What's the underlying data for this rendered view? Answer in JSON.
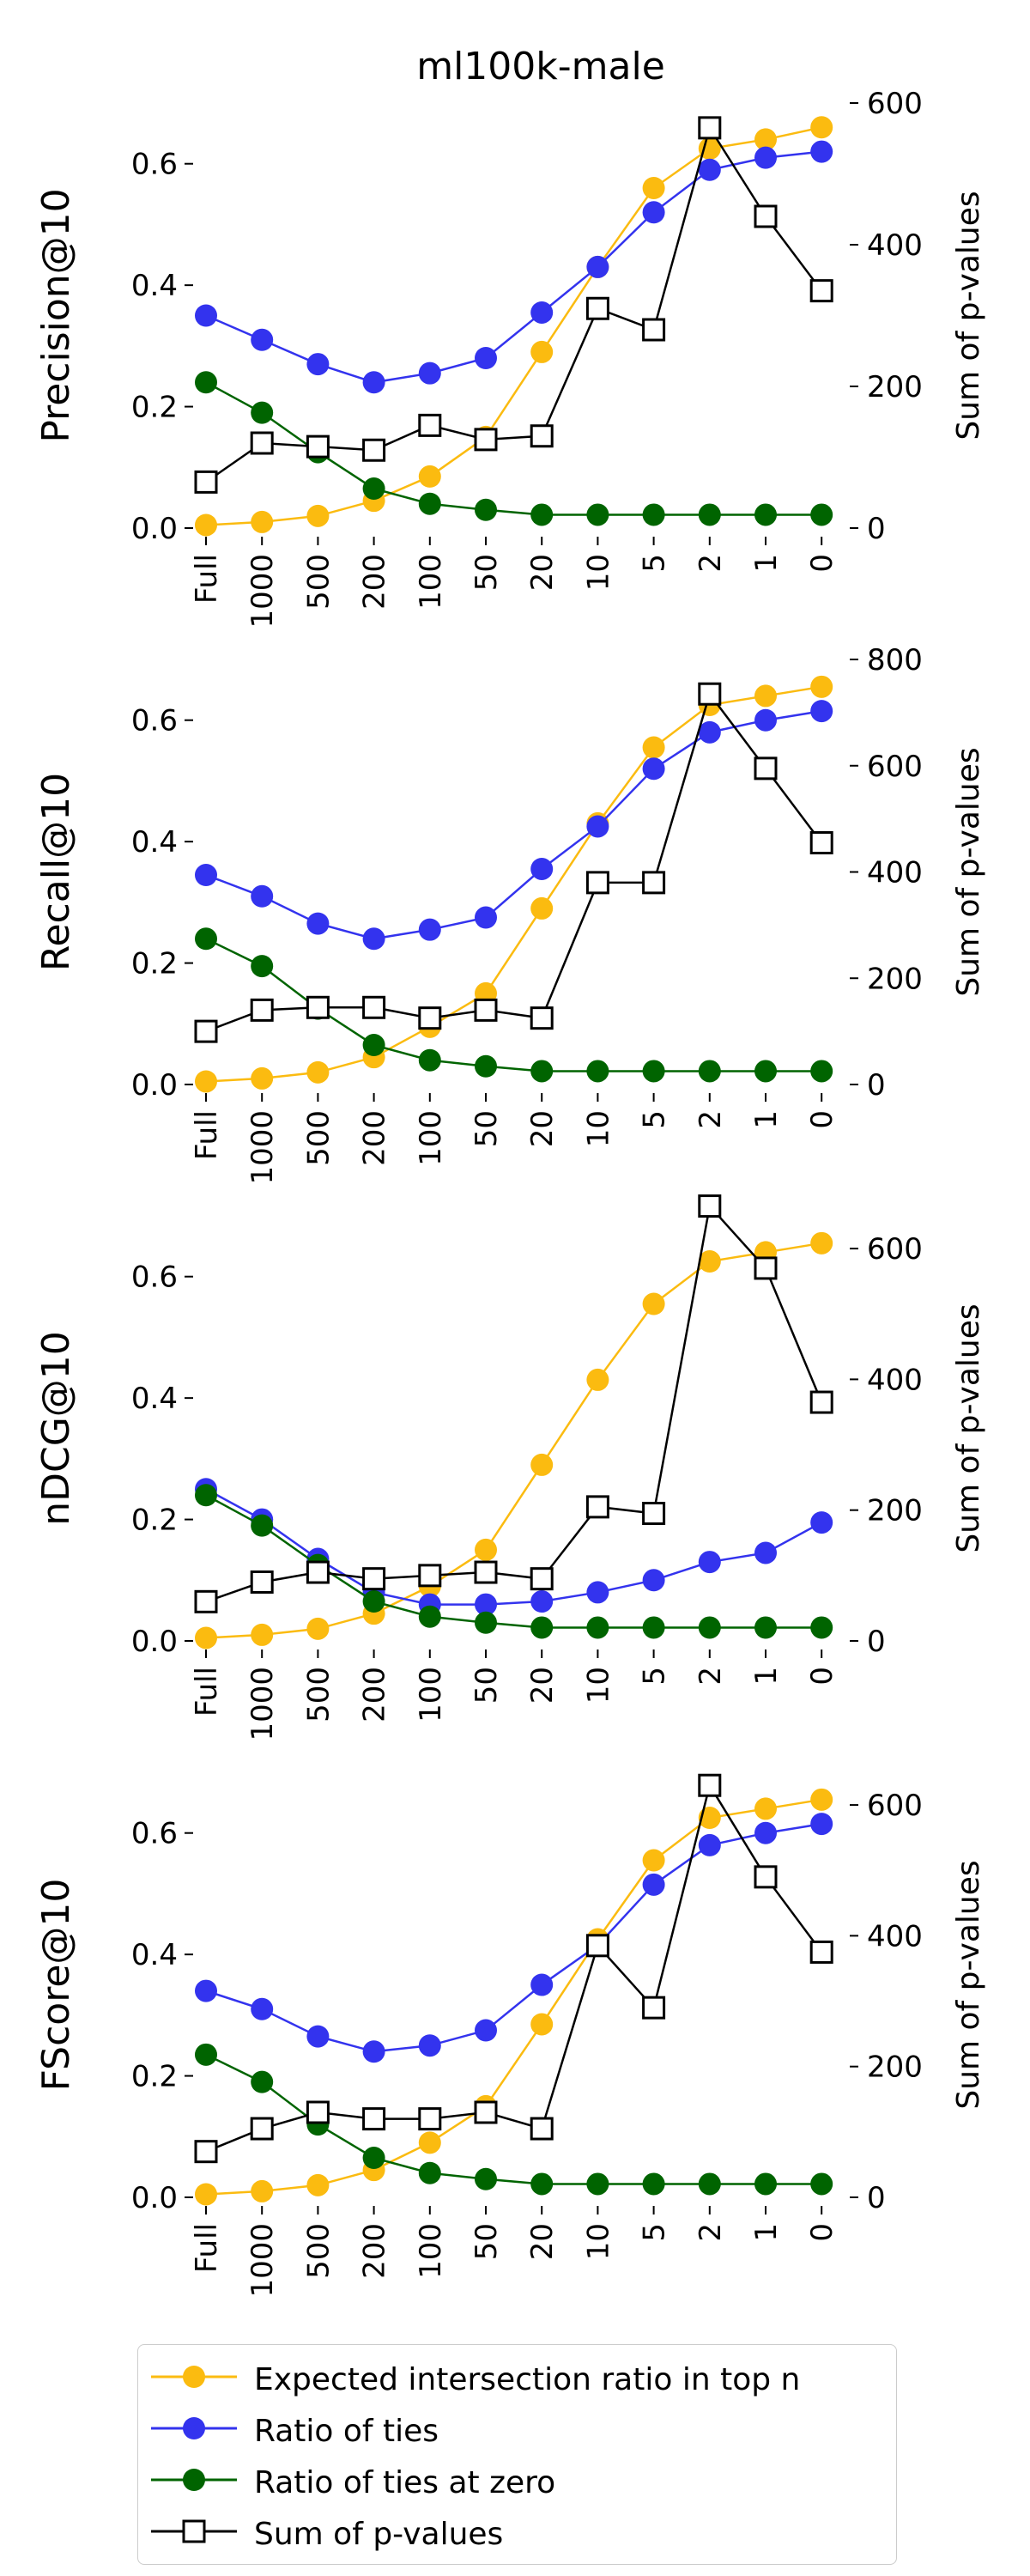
{
  "title": "ml100k-male",
  "colors": {
    "expected": "#fbbb10",
    "ties": "#3333ee",
    "ties_zero": "#006400",
    "pvalues": "#000000"
  },
  "legend": [
    {
      "key": "expected",
      "label": "Expected intersection ratio in top n",
      "marker": "circle"
    },
    {
      "key": "ties",
      "label": "Ratio of ties",
      "marker": "circle"
    },
    {
      "key": "ties_zero",
      "label": "Ratio of ties at zero",
      "marker": "circle"
    },
    {
      "key": "pvalues",
      "label": "Sum of p-values",
      "marker": "square"
    }
  ],
  "chart_data": [
    {
      "type": "line",
      "ylabel": "Precision@10",
      "y2label": "Sum of p-values",
      "categories": [
        "Full",
        "1000",
        "500",
        "200",
        "100",
        "50",
        "20",
        "10",
        "5",
        "2",
        "1",
        "0"
      ],
      "yticks": [
        "0.0",
        "0.2",
        "0.4",
        "0.6"
      ],
      "y2ticks": [
        "0",
        "200",
        "400",
        "600"
      ],
      "ylim": [
        0,
        0.7
      ],
      "y2lim": [
        0,
        600
      ],
      "series": [
        {
          "name": "Expected intersection ratio in top n",
          "key": "expected",
          "axis": "left",
          "values": [
            0.005,
            0.01,
            0.02,
            0.045,
            0.085,
            0.15,
            0.29,
            0.43,
            0.56,
            0.625,
            0.64,
            0.66
          ]
        },
        {
          "name": "Ratio of ties",
          "key": "ties",
          "axis": "left",
          "values": [
            0.35,
            0.31,
            0.27,
            0.24,
            0.255,
            0.28,
            0.355,
            0.43,
            0.52,
            0.59,
            0.61,
            0.62
          ]
        },
        {
          "name": "Ratio of ties at zero",
          "key": "ties_zero",
          "axis": "left",
          "values": [
            0.24,
            0.19,
            0.125,
            0.065,
            0.04,
            0.03,
            0.022,
            0.022,
            0.022,
            0.022,
            0.022,
            0.022
          ]
        },
        {
          "name": "Sum of p-values",
          "key": "pvalues",
          "axis": "right",
          "values": [
            65,
            120,
            115,
            110,
            145,
            125,
            130,
            310,
            280,
            565,
            440,
            335
          ]
        }
      ]
    },
    {
      "type": "line",
      "ylabel": "Recall@10",
      "y2label": "Sum of p-values",
      "categories": [
        "Full",
        "1000",
        "500",
        "200",
        "100",
        "50",
        "20",
        "10",
        "5",
        "2",
        "1",
        "0"
      ],
      "yticks": [
        "0.0",
        "0.2",
        "0.4",
        "0.6"
      ],
      "y2ticks": [
        "0",
        "200",
        "400",
        "600",
        "800"
      ],
      "ylim": [
        0,
        0.7
      ],
      "y2lim": [
        0,
        800
      ],
      "series": [
        {
          "name": "Expected intersection ratio in top n",
          "key": "expected",
          "axis": "left",
          "values": [
            0.005,
            0.01,
            0.02,
            0.045,
            0.095,
            0.15,
            0.29,
            0.43,
            0.555,
            0.625,
            0.64,
            0.655
          ]
        },
        {
          "name": "Ratio of ties",
          "key": "ties",
          "axis": "left",
          "values": [
            0.345,
            0.31,
            0.265,
            0.24,
            0.255,
            0.275,
            0.355,
            0.425,
            0.52,
            0.58,
            0.6,
            0.615
          ]
        },
        {
          "name": "Ratio of ties at zero",
          "key": "ties_zero",
          "axis": "left",
          "values": [
            0.24,
            0.195,
            0.125,
            0.065,
            0.04,
            0.03,
            0.022,
            0.022,
            0.022,
            0.022,
            0.022,
            0.022
          ]
        },
        {
          "name": "Sum of p-values",
          "key": "pvalues",
          "axis": "right",
          "values": [
            100,
            140,
            145,
            145,
            125,
            140,
            125,
            380,
            380,
            735,
            595,
            455
          ]
        }
      ]
    },
    {
      "type": "line",
      "ylabel": "nDCG@10",
      "y2label": "Sum of p-values",
      "categories": [
        "Full",
        "1000",
        "500",
        "200",
        "100",
        "50",
        "20",
        "10",
        "5",
        "2",
        "1",
        "0"
      ],
      "yticks": [
        "0.0",
        "0.2",
        "0.4",
        "0.6"
      ],
      "y2ticks": [
        "0",
        "200",
        "400",
        "600"
      ],
      "ylim": [
        0,
        0.7
      ],
      "y2lim": [
        0,
        650
      ],
      "series": [
        {
          "name": "Expected intersection ratio in top n",
          "key": "expected",
          "axis": "left",
          "values": [
            0.005,
            0.01,
            0.02,
            0.045,
            0.09,
            0.15,
            0.29,
            0.43,
            0.555,
            0.625,
            0.64,
            0.655
          ]
        },
        {
          "name": "Ratio of ties",
          "key": "ties",
          "axis": "left",
          "values": [
            0.25,
            0.2,
            0.135,
            0.08,
            0.06,
            0.06,
            0.065,
            0.08,
            0.1,
            0.13,
            0.145,
            0.195
          ]
        },
        {
          "name": "Ratio of ties at zero",
          "key": "ties_zero",
          "axis": "left",
          "values": [
            0.24,
            0.19,
            0.125,
            0.065,
            0.04,
            0.03,
            0.022,
            0.022,
            0.022,
            0.022,
            0.022,
            0.022
          ]
        },
        {
          "name": "Sum of p-values",
          "key": "pvalues",
          "axis": "right",
          "values": [
            60,
            90,
            105,
            95,
            100,
            105,
            95,
            205,
            195,
            665,
            570,
            365
          ]
        }
      ]
    },
    {
      "type": "line",
      "ylabel": "FScore@10",
      "y2label": "Sum of p-values",
      "categories": [
        "Full",
        "1000",
        "500",
        "200",
        "100",
        "50",
        "20",
        "10",
        "5",
        "2",
        "1",
        "0"
      ],
      "yticks": [
        "0.0",
        "0.2",
        "0.4",
        "0.6"
      ],
      "y2ticks": [
        "0",
        "200",
        "400",
        "600"
      ],
      "ylim": [
        0,
        0.7
      ],
      "y2lim": [
        0,
        650
      ],
      "series": [
        {
          "name": "Expected intersection ratio in top n",
          "key": "expected",
          "axis": "left",
          "values": [
            0.005,
            0.01,
            0.02,
            0.045,
            0.09,
            0.15,
            0.285,
            0.425,
            0.555,
            0.625,
            0.64,
            0.655
          ]
        },
        {
          "name": "Ratio of ties",
          "key": "ties",
          "axis": "left",
          "values": [
            0.34,
            0.31,
            0.265,
            0.24,
            0.25,
            0.275,
            0.35,
            0.415,
            0.515,
            0.58,
            0.6,
            0.615
          ]
        },
        {
          "name": "Ratio of ties at zero",
          "key": "ties_zero",
          "axis": "left",
          "values": [
            0.235,
            0.19,
            0.12,
            0.065,
            0.04,
            0.03,
            0.022,
            0.022,
            0.022,
            0.022,
            0.022,
            0.022
          ]
        },
        {
          "name": "Sum of p-values",
          "key": "pvalues",
          "axis": "right",
          "values": [
            70,
            105,
            130,
            120,
            120,
            130,
            105,
            385,
            290,
            630,
            490,
            375
          ]
        }
      ]
    }
  ]
}
